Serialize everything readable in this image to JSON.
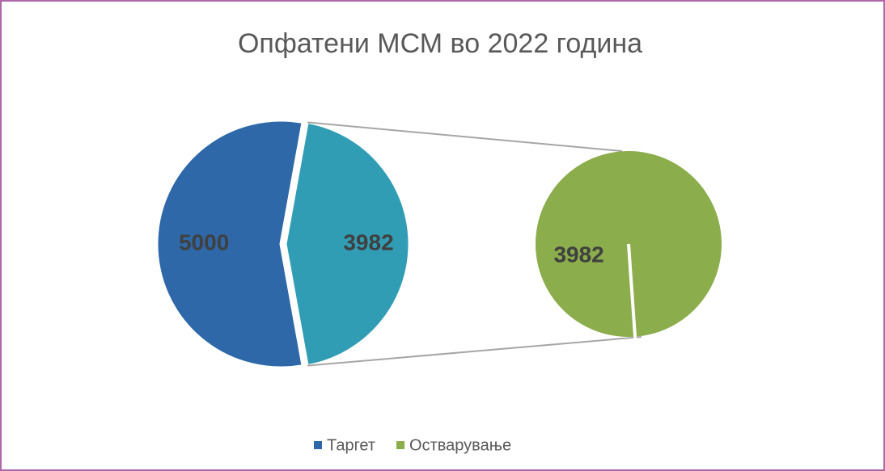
{
  "chart_data": {
    "type": "pie-of-pie",
    "title": "Опфатени МСМ во 2022 година",
    "categories": [
      "Таргет",
      "Остварување"
    ],
    "values": [
      5000,
      3982
    ],
    "colors": [
      "#2e68a8",
      "#8bad4b"
    ],
    "other_color": "#319db5",
    "secondary": [
      1
    ]
  }
}
